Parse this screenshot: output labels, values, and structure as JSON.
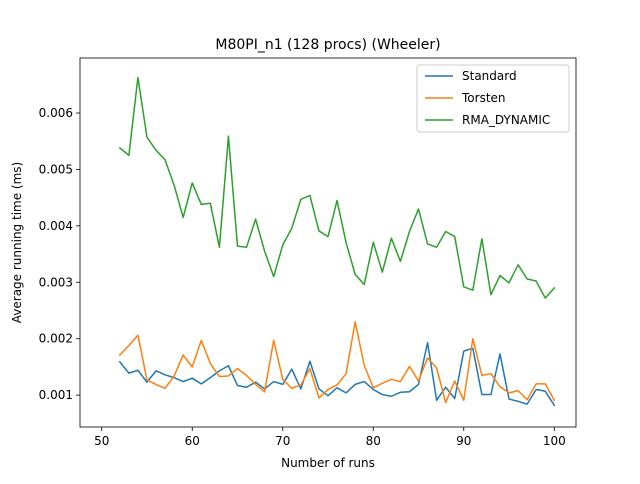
{
  "chart_data": {
    "type": "line",
    "title": "M80PI_n1 (128 procs) (Wheeler)",
    "xlabel": "Number of runs",
    "ylabel": "Average running time (ms)",
    "xlim": [
      47.6,
      102.4
    ],
    "ylim": [
      0.000435,
      0.006975
    ],
    "xticks": [
      50,
      60,
      70,
      80,
      90,
      100
    ],
    "xtick_labels": [
      "50",
      "60",
      "70",
      "80",
      "90",
      "100"
    ],
    "yticks": [
      0.001,
      0.002,
      0.003,
      0.004,
      0.005,
      0.006
    ],
    "ytick_labels": [
      "0.001",
      "0.002",
      "0.003",
      "0.004",
      "0.005",
      "0.006"
    ],
    "grid": false,
    "legend_position": "top-right",
    "x": [
      52,
      53,
      54,
      55,
      56,
      57,
      58,
      59,
      60,
      61,
      62,
      63,
      64,
      65,
      66,
      67,
      68,
      69,
      70,
      71,
      72,
      73,
      74,
      75,
      76,
      77,
      78,
      79,
      80,
      81,
      82,
      83,
      84,
      85,
      86,
      87,
      88,
      89,
      90,
      91,
      92,
      93,
      94,
      95,
      96,
      97,
      98,
      99,
      100
    ],
    "series": [
      {
        "name": "Standard",
        "color": "#1f77b4",
        "values": [
          0.00159,
          0.00139,
          0.00144,
          0.00123,
          0.00143,
          0.00136,
          0.00131,
          0.00124,
          0.0013,
          0.0012,
          0.00131,
          0.00143,
          0.00152,
          0.00117,
          0.00114,
          0.00123,
          0.00111,
          0.00124,
          0.00119,
          0.00146,
          0.00111,
          0.0016,
          0.00111,
          0.00099,
          0.00113,
          0.00104,
          0.00119,
          0.00124,
          0.0011,
          0.00101,
          0.00098,
          0.00105,
          0.00106,
          0.00119,
          0.00193,
          0.00091,
          0.00114,
          0.00094,
          0.00178,
          0.00183,
          0.00101,
          0.00101,
          0.00173,
          0.00093,
          0.00089,
          0.00084,
          0.0011,
          0.00107,
          0.00082
        ]
      },
      {
        "name": "Torsten",
        "color": "#ff7f0e",
        "values": [
          0.00171,
          0.00188,
          0.00206,
          0.00127,
          0.00119,
          0.00112,
          0.00134,
          0.00171,
          0.0015,
          0.00197,
          0.00156,
          0.00133,
          0.00134,
          0.00147,
          0.00135,
          0.00119,
          0.00106,
          0.00197,
          0.00128,
          0.00112,
          0.00118,
          0.00147,
          0.00095,
          0.0011,
          0.00118,
          0.00138,
          0.0023,
          0.00153,
          0.00113,
          0.00121,
          0.00128,
          0.00124,
          0.00151,
          0.00125,
          0.00166,
          0.00148,
          0.00087,
          0.00125,
          0.00091,
          0.002,
          0.00135,
          0.00138,
          0.00115,
          0.00104,
          0.00108,
          0.00092,
          0.0012,
          0.0012,
          0.00091
        ]
      },
      {
        "name": "RMA_DYNAMIC",
        "color": "#2ca02c",
        "values": [
          0.00538,
          0.00525,
          0.00663,
          0.00557,
          0.00534,
          0.00517,
          0.00472,
          0.00415,
          0.00476,
          0.00438,
          0.0044,
          0.00362,
          0.00559,
          0.00364,
          0.00362,
          0.00412,
          0.00355,
          0.0031,
          0.00366,
          0.00396,
          0.00447,
          0.00454,
          0.00391,
          0.00381,
          0.00445,
          0.0037,
          0.00314,
          0.00296,
          0.00371,
          0.00318,
          0.00378,
          0.00337,
          0.0039,
          0.0043,
          0.00368,
          0.00362,
          0.0039,
          0.00381,
          0.00292,
          0.00286,
          0.00377,
          0.00278,
          0.00312,
          0.00299,
          0.00331,
          0.00306,
          0.00302,
          0.00272,
          0.0029
        ]
      }
    ]
  }
}
